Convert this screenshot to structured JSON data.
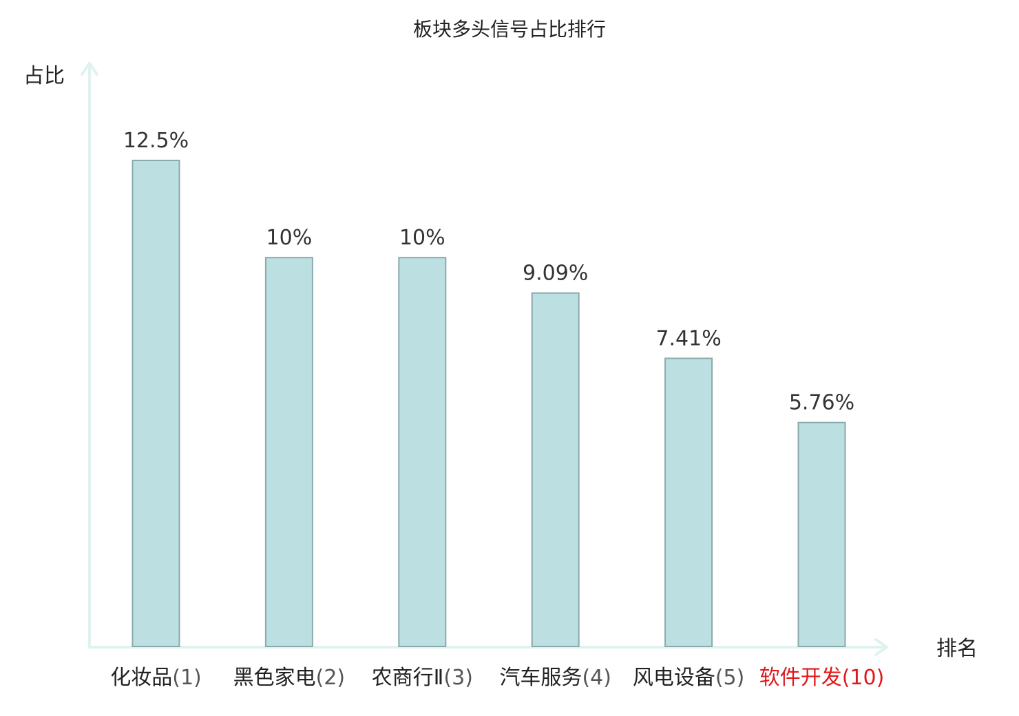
{
  "chart_data": {
    "type": "bar",
    "title": "板块多头信号占比排行",
    "xlabel": "排名",
    "ylabel": "占比",
    "categories": [
      {
        "name": "化妆品",
        "rank": "(1)"
      },
      {
        "name": "黑色家电",
        "rank": "(2)"
      },
      {
        "name": "农商行Ⅱ",
        "rank": "(3)"
      },
      {
        "name": "汽车服务",
        "rank": "(4)"
      },
      {
        "name": "风电设备",
        "rank": "(5)"
      },
      {
        "name": "软件开发",
        "rank": "(10)",
        "highlight": true
      }
    ],
    "values": [
      12.5,
      10,
      10,
      9.09,
      7.41,
      5.76
    ],
    "value_labels": [
      "12.5%",
      "10%",
      "10%",
      "9.09%",
      "7.41%",
      "5.76%"
    ],
    "ylim": [
      0,
      12.5
    ],
    "grid": false,
    "colors": {
      "bar_fill": "#bce0e2",
      "bar_stroke": "#8aa9ab",
      "axis": "#dff2f0",
      "text": "#222222",
      "rank_text": "#555555",
      "highlight": "#e0191b"
    }
  }
}
